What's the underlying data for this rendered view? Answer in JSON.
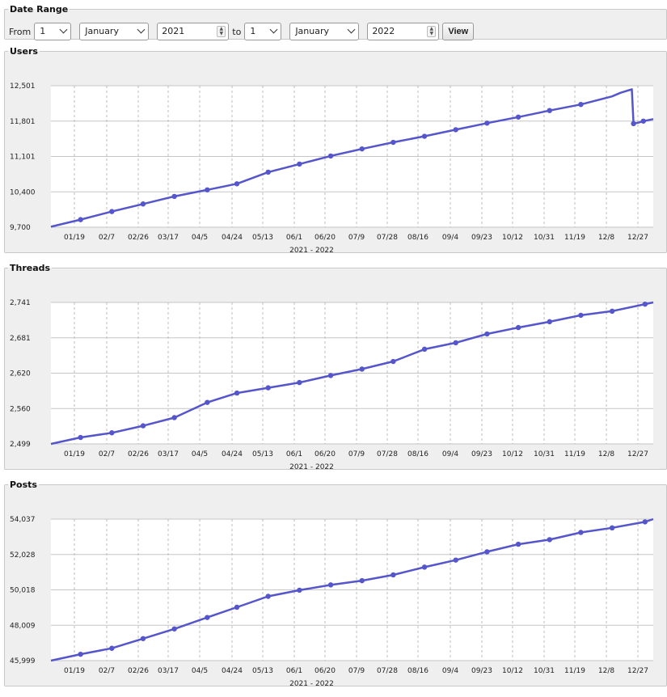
{
  "date_range": {
    "legend": "Date Range",
    "from_label": "From",
    "to_label": "to",
    "from_day": "1",
    "from_month": "January",
    "from_year": "2021",
    "to_day": "1",
    "to_month": "January",
    "to_year": "2022",
    "view_label": "View"
  },
  "chart_data": [
    {
      "type": "line",
      "title": "Users",
      "xlabel": "2021 - 2022",
      "x_ticks": [
        "01/19",
        "02/7",
        "02/26",
        "03/17",
        "04/5",
        "04/24",
        "05/13",
        "06/1",
        "06/20",
        "07/9",
        "07/28",
        "08/16",
        "09/4",
        "09/23",
        "10/12",
        "10/31",
        "11/19",
        "12/8",
        "12/27"
      ],
      "y_ticks": [
        "9,700",
        "10,400",
        "11,101",
        "11,801",
        "12,501"
      ],
      "ylim": [
        9700,
        12501
      ],
      "x_range": [
        0,
        366
      ],
      "grid": true,
      "color": "#5555cc",
      "points": [
        [
          0,
          9710
        ],
        [
          18,
          9850
        ],
        [
          37,
          10010
        ],
        [
          56,
          10160
        ],
        [
          71,
          10280
        ],
        [
          75,
          10310
        ],
        [
          95,
          10440
        ],
        [
          113,
          10560
        ],
        [
          132,
          10790
        ],
        [
          151,
          10950
        ],
        [
          170,
          11110
        ],
        [
          189,
          11250
        ],
        [
          208,
          11380
        ],
        [
          227,
          11500
        ],
        [
          246,
          11630
        ],
        [
          265,
          11760
        ],
        [
          284,
          11880
        ],
        [
          303,
          12010
        ],
        [
          322,
          12130
        ],
        [
          341,
          12290
        ],
        [
          346,
          12360
        ],
        [
          353,
          12430
        ],
        [
          354,
          11750
        ],
        [
          357,
          11770
        ],
        [
          360,
          11800
        ],
        [
          366,
          11840
        ]
      ],
      "markers": [
        [
          18,
          9850
        ],
        [
          37,
          10010
        ],
        [
          56,
          10160
        ],
        [
          75,
          10310
        ],
        [
          95,
          10440
        ],
        [
          113,
          10560
        ],
        [
          132,
          10790
        ],
        [
          151,
          10950
        ],
        [
          170,
          11110
        ],
        [
          189,
          11250
        ],
        [
          208,
          11380
        ],
        [
          227,
          11500
        ],
        [
          246,
          11630
        ],
        [
          265,
          11760
        ],
        [
          284,
          11880
        ],
        [
          303,
          12010
        ],
        [
          322,
          12130
        ],
        [
          354,
          11750
        ],
        [
          360,
          11800
        ]
      ]
    },
    {
      "type": "line",
      "title": "Threads",
      "xlabel": "2021 - 2022",
      "x_ticks": [
        "01/19",
        "02/7",
        "02/26",
        "03/17",
        "04/5",
        "04/24",
        "05/13",
        "06/1",
        "06/20",
        "07/9",
        "07/28",
        "08/16",
        "09/4",
        "09/23",
        "10/12",
        "10/31",
        "11/19",
        "12/8",
        "12/27"
      ],
      "y_ticks": [
        "2,499",
        "2,560",
        "2,620",
        "2,681",
        "2,741"
      ],
      "ylim": [
        2499,
        2741
      ],
      "x_range": [
        0,
        366
      ],
      "grid": true,
      "color": "#5555cc",
      "points": [
        [
          0,
          2499
        ],
        [
          18,
          2510
        ],
        [
          37,
          2518
        ],
        [
          56,
          2530
        ],
        [
          75,
          2544
        ],
        [
          95,
          2570
        ],
        [
          113,
          2586
        ],
        [
          132,
          2595
        ],
        [
          151,
          2604
        ],
        [
          170,
          2616
        ],
        [
          189,
          2627
        ],
        [
          208,
          2640
        ],
        [
          227,
          2661
        ],
        [
          246,
          2672
        ],
        [
          265,
          2687
        ],
        [
          284,
          2698
        ],
        [
          303,
          2708
        ],
        [
          322,
          2719
        ],
        [
          341,
          2726
        ],
        [
          366,
          2741
        ]
      ],
      "markers": [
        [
          18,
          2510
        ],
        [
          37,
          2518
        ],
        [
          56,
          2530
        ],
        [
          75,
          2544
        ],
        [
          95,
          2570
        ],
        [
          113,
          2586
        ],
        [
          132,
          2595
        ],
        [
          151,
          2604
        ],
        [
          170,
          2616
        ],
        [
          189,
          2627
        ],
        [
          208,
          2640
        ],
        [
          227,
          2661
        ],
        [
          246,
          2672
        ],
        [
          265,
          2687
        ],
        [
          284,
          2698
        ],
        [
          303,
          2708
        ],
        [
          322,
          2719
        ],
        [
          341,
          2726
        ],
        [
          361,
          2738
        ]
      ]
    },
    {
      "type": "line",
      "title": "Posts",
      "xlabel": "2021 - 2022",
      "x_ticks": [
        "01/19",
        "02/7",
        "02/26",
        "03/17",
        "04/5",
        "04/24",
        "05/13",
        "06/1",
        "06/20",
        "07/9",
        "07/28",
        "08/16",
        "09/4",
        "09/23",
        "10/12",
        "10/31",
        "11/19",
        "12/8",
        "12/27"
      ],
      "y_ticks": [
        "45,999",
        "48,009",
        "50,018",
        "52,028",
        "54,037"
      ],
      "ylim": [
        45999,
        54037
      ],
      "x_range": [
        0,
        366
      ],
      "grid": true,
      "color": "#5555cc",
      "points": [
        [
          0,
          45999
        ],
        [
          18,
          46360
        ],
        [
          37,
          46700
        ],
        [
          56,
          47250
        ],
        [
          75,
          47800
        ],
        [
          95,
          48450
        ],
        [
          113,
          49030
        ],
        [
          132,
          49650
        ],
        [
          151,
          50000
        ],
        [
          170,
          50300
        ],
        [
          189,
          50540
        ],
        [
          208,
          50870
        ],
        [
          227,
          51310
        ],
        [
          246,
          51710
        ],
        [
          265,
          52180
        ],
        [
          284,
          52610
        ],
        [
          303,
          52870
        ],
        [
          322,
          53280
        ],
        [
          341,
          53540
        ],
        [
          361,
          53880
        ],
        [
          366,
          54037
        ]
      ],
      "markers": [
        [
          18,
          46360
        ],
        [
          37,
          46700
        ],
        [
          56,
          47250
        ],
        [
          75,
          47800
        ],
        [
          95,
          48450
        ],
        [
          113,
          49030
        ],
        [
          132,
          49650
        ],
        [
          151,
          50000
        ],
        [
          170,
          50300
        ],
        [
          189,
          50540
        ],
        [
          208,
          50870
        ],
        [
          227,
          51310
        ],
        [
          246,
          51710
        ],
        [
          265,
          52180
        ],
        [
          284,
          52610
        ],
        [
          303,
          52870
        ],
        [
          322,
          53280
        ],
        [
          341,
          53540
        ],
        [
          361,
          53880
        ]
      ]
    }
  ]
}
